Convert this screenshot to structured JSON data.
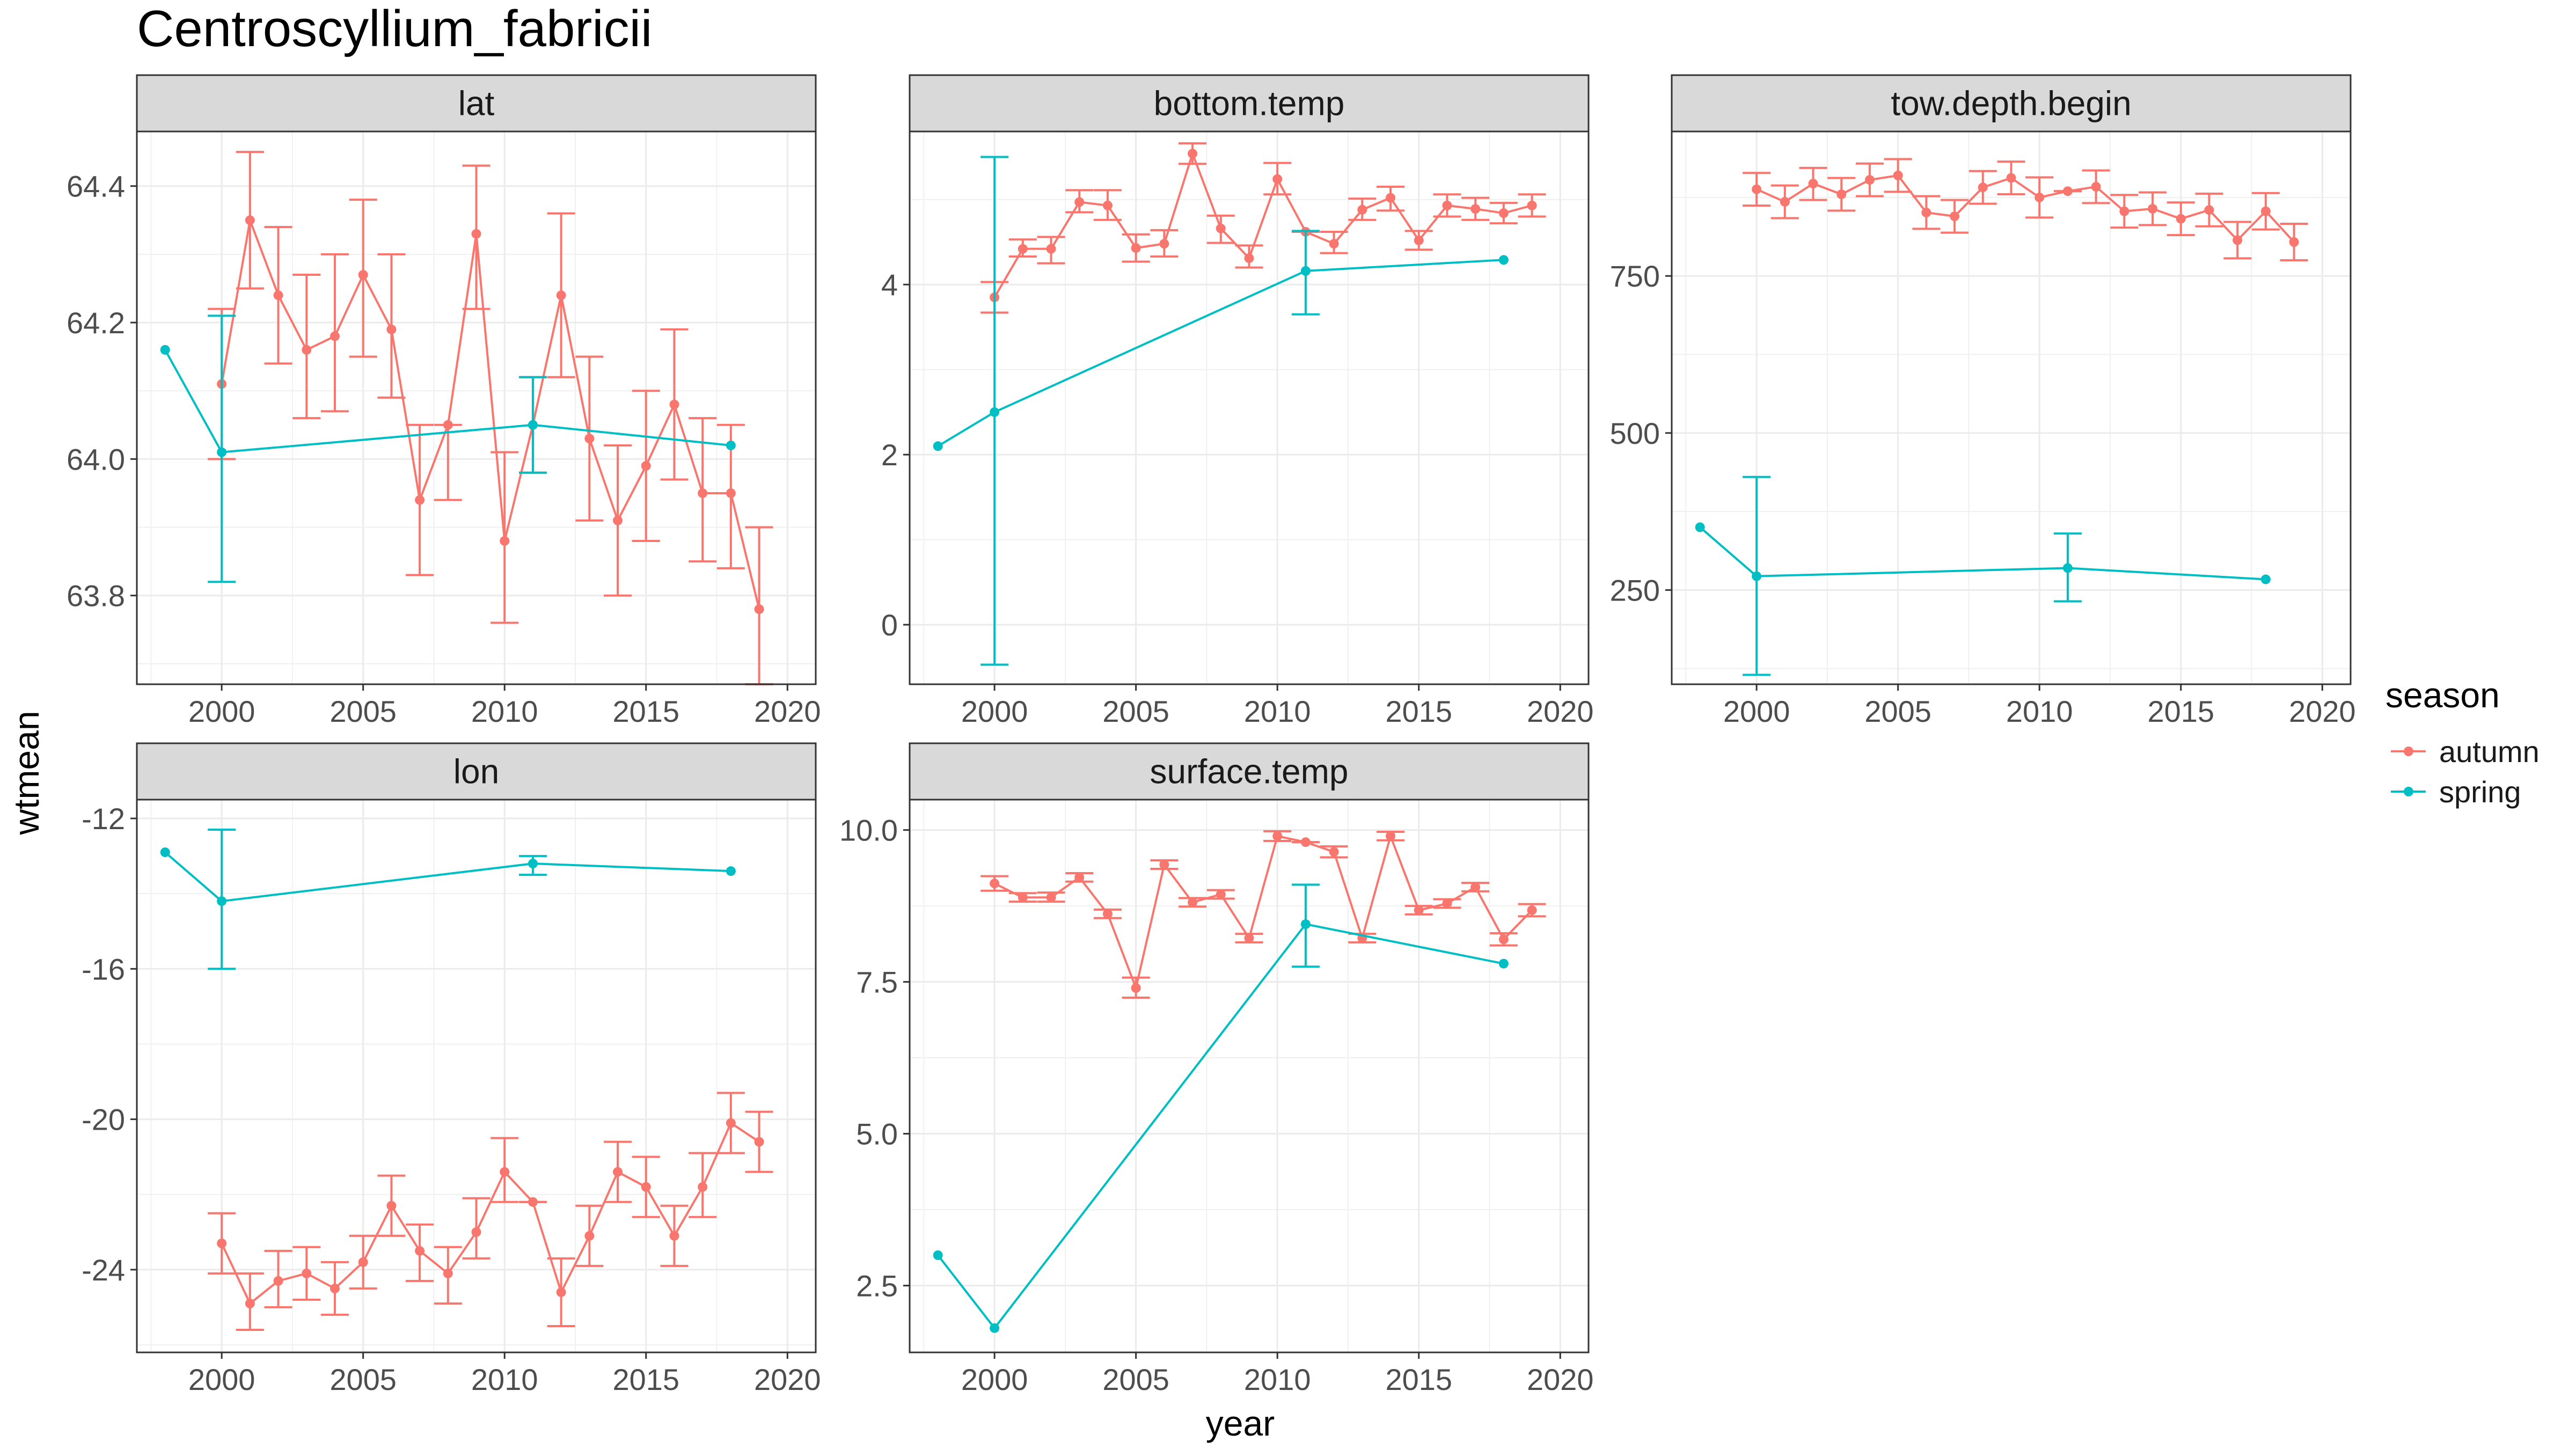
{
  "figure": {
    "title": "Centroscyllium_fabricii",
    "xlabel": "year",
    "ylabel": "wtmean"
  },
  "legend": {
    "title": "season",
    "items": [
      {
        "label": "autumn",
        "color": "#F8766D"
      },
      {
        "label": "spring",
        "color": "#00BFC4"
      }
    ]
  },
  "chart_data": [
    {
      "type": "line",
      "panel": "lat",
      "xlim": [
        1997,
        2021
      ],
      "ylim": [
        63.67,
        64.48
      ],
      "xticks": [
        2000,
        2005,
        2010,
        2015,
        2020
      ],
      "yticks": [
        63.8,
        64.0,
        64.2,
        64.4
      ],
      "ytick_labels": [
        "63.8",
        "64.0",
        "64.2",
        "64.4"
      ],
      "series": [
        {
          "name": "autumn",
          "color": "#F8766D",
          "points": [
            {
              "x": 2000,
              "y": 64.11,
              "lo": 64.0,
              "hi": 64.22
            },
            {
              "x": 2001,
              "y": 64.35,
              "lo": 64.25,
              "hi": 64.45
            },
            {
              "x": 2002,
              "y": 64.24,
              "lo": 64.14,
              "hi": 64.34
            },
            {
              "x": 2003,
              "y": 64.16,
              "lo": 64.06,
              "hi": 64.27
            },
            {
              "x": 2004,
              "y": 64.18,
              "lo": 64.07,
              "hi": 64.3
            },
            {
              "x": 2005,
              "y": 64.27,
              "lo": 64.15,
              "hi": 64.38
            },
            {
              "x": 2006,
              "y": 64.19,
              "lo": 64.09,
              "hi": 64.3
            },
            {
              "x": 2007,
              "y": 63.94,
              "lo": 63.83,
              "hi": 64.05
            },
            {
              "x": 2008,
              "y": 64.05,
              "lo": 63.94,
              "hi": 64.05
            },
            {
              "x": 2009,
              "y": 64.33,
              "lo": 64.22,
              "hi": 64.43
            },
            {
              "x": 2010,
              "y": 63.88,
              "lo": 63.76,
              "hi": 64.01
            },
            {
              "x": 2011,
              "y": 64.05,
              "lo": 63.98,
              "hi": 64.12
            },
            {
              "x": 2012,
              "y": 64.24,
              "lo": 64.12,
              "hi": 64.36
            },
            {
              "x": 2013,
              "y": 64.03,
              "lo": 63.91,
              "hi": 64.15
            },
            {
              "x": 2014,
              "y": 63.91,
              "lo": 63.8,
              "hi": 64.02
            },
            {
              "x": 2015,
              "y": 63.99,
              "lo": 63.88,
              "hi": 64.1
            },
            {
              "x": 2016,
              "y": 64.08,
              "lo": 63.97,
              "hi": 64.19
            },
            {
              "x": 2017,
              "y": 63.95,
              "lo": 63.85,
              "hi": 64.06
            },
            {
              "x": 2018,
              "y": 63.95,
              "lo": 63.84,
              "hi": 64.05
            },
            {
              "x": 2019,
              "y": 63.78,
              "lo": 63.67,
              "hi": 63.9
            }
          ]
        },
        {
          "name": "spring",
          "color": "#00BFC4",
          "points": [
            {
              "x": 1998,
              "y": 64.16
            },
            {
              "x": 2000,
              "y": 64.01,
              "lo": 63.82,
              "hi": 64.21
            },
            {
              "x": 2011,
              "y": 64.05,
              "lo": 63.98,
              "hi": 64.12
            },
            {
              "x": 2018,
              "y": 64.02
            }
          ]
        }
      ]
    },
    {
      "type": "line",
      "panel": "bottom.temp",
      "xlim": [
        1997,
        2021
      ],
      "ylim": [
        -0.7,
        5.8
      ],
      "xticks": [
        2000,
        2005,
        2010,
        2015,
        2020
      ],
      "yticks": [
        0,
        2,
        4
      ],
      "ytick_labels": [
        "0",
        "2",
        "4"
      ],
      "series": [
        {
          "name": "autumn",
          "color": "#F8766D",
          "points": [
            {
              "x": 2000,
              "y": 3.85,
              "lo": 3.67,
              "hi": 4.03
            },
            {
              "x": 2001,
              "y": 4.42,
              "lo": 4.33,
              "hi": 4.53
            },
            {
              "x": 2002,
              "y": 4.42,
              "lo": 4.25,
              "hi": 4.56
            },
            {
              "x": 2003,
              "y": 4.97,
              "lo": 4.85,
              "hi": 5.11
            },
            {
              "x": 2004,
              "y": 4.93,
              "lo": 4.76,
              "hi": 5.11
            },
            {
              "x": 2005,
              "y": 4.43,
              "lo": 4.27,
              "hi": 4.59
            },
            {
              "x": 2006,
              "y": 4.48,
              "lo": 4.33,
              "hi": 4.64
            },
            {
              "x": 2007,
              "y": 5.54,
              "lo": 5.42,
              "hi": 5.66
            },
            {
              "x": 2008,
              "y": 4.66,
              "lo": 4.49,
              "hi": 4.81
            },
            {
              "x": 2009,
              "y": 4.31,
              "lo": 4.2,
              "hi": 4.46
            },
            {
              "x": 2010,
              "y": 5.24,
              "lo": 5.06,
              "hi": 5.43
            },
            {
              "x": 2011,
              "y": 4.62,
              "lo": 4.62,
              "hi": 4.62
            },
            {
              "x": 2012,
              "y": 4.48,
              "lo": 4.37,
              "hi": 4.62
            },
            {
              "x": 2013,
              "y": 4.88,
              "lo": 4.76,
              "hi": 5.01
            },
            {
              "x": 2014,
              "y": 5.02,
              "lo": 4.87,
              "hi": 5.15
            },
            {
              "x": 2015,
              "y": 4.52,
              "lo": 4.41,
              "hi": 4.63
            },
            {
              "x": 2016,
              "y": 4.93,
              "lo": 4.8,
              "hi": 5.06
            },
            {
              "x": 2017,
              "y": 4.89,
              "lo": 4.76,
              "hi": 5.02
            },
            {
              "x": 2018,
              "y": 4.84,
              "lo": 4.72,
              "hi": 4.96
            },
            {
              "x": 2019,
              "y": 4.93,
              "lo": 4.8,
              "hi": 5.06
            }
          ]
        },
        {
          "name": "spring",
          "color": "#00BFC4",
          "points": [
            {
              "x": 1998,
              "y": 2.1
            },
            {
              "x": 2000,
              "y": 2.5,
              "lo": -0.47,
              "hi": 5.5
            },
            {
              "x": 2011,
              "y": 4.16,
              "lo": 3.65,
              "hi": 4.63
            },
            {
              "x": 2018,
              "y": 4.29
            }
          ]
        }
      ]
    },
    {
      "type": "line",
      "panel": "tow.depth.begin",
      "xlim": [
        1997,
        2021
      ],
      "ylim": [
        100,
        980
      ],
      "xticks": [
        2000,
        2005,
        2010,
        2015,
        2020
      ],
      "yticks": [
        250,
        500,
        750
      ],
      "ytick_labels": [
        "250",
        "500",
        "750"
      ],
      "series": [
        {
          "name": "autumn",
          "color": "#F8766D",
          "points": [
            {
              "x": 2000,
              "y": 888,
              "lo": 862,
              "hi": 914
            },
            {
              "x": 2001,
              "y": 868,
              "lo": 842,
              "hi": 894
            },
            {
              "x": 2002,
              "y": 897,
              "lo": 871,
              "hi": 922
            },
            {
              "x": 2003,
              "y": 880,
              "lo": 854,
              "hi": 906
            },
            {
              "x": 2004,
              "y": 903,
              "lo": 877,
              "hi": 929
            },
            {
              "x": 2005,
              "y": 910,
              "lo": 884,
              "hi": 936
            },
            {
              "x": 2006,
              "y": 851,
              "lo": 825,
              "hi": 877
            },
            {
              "x": 2007,
              "y": 845,
              "lo": 819,
              "hi": 871
            },
            {
              "x": 2008,
              "y": 891,
              "lo": 865,
              "hi": 917
            },
            {
              "x": 2009,
              "y": 906,
              "lo": 880,
              "hi": 932
            },
            {
              "x": 2010,
              "y": 875,
              "lo": 843,
              "hi": 907
            },
            {
              "x": 2011,
              "y": 885,
              "lo": 885,
              "hi": 885
            },
            {
              "x": 2012,
              "y": 892,
              "lo": 866,
              "hi": 918
            },
            {
              "x": 2013,
              "y": 853,
              "lo": 827,
              "hi": 879
            },
            {
              "x": 2014,
              "y": 857,
              "lo": 831,
              "hi": 883
            },
            {
              "x": 2015,
              "y": 841,
              "lo": 815,
              "hi": 867
            },
            {
              "x": 2016,
              "y": 855,
              "lo": 829,
              "hi": 881
            },
            {
              "x": 2017,
              "y": 807,
              "lo": 778,
              "hi": 836
            },
            {
              "x": 2018,
              "y": 853,
              "lo": 824,
              "hi": 882
            },
            {
              "x": 2019,
              "y": 804,
              "lo": 775,
              "hi": 833
            }
          ]
        },
        {
          "name": "spring",
          "color": "#00BFC4",
          "points": [
            {
              "x": 1998,
              "y": 350
            },
            {
              "x": 2000,
              "y": 272,
              "lo": 115,
              "hi": 430
            },
            {
              "x": 2011,
              "y": 285,
              "lo": 232,
              "hi": 340
            },
            {
              "x": 2018,
              "y": 267
            }
          ]
        }
      ]
    },
    {
      "type": "line",
      "panel": "lon",
      "xlim": [
        1997,
        2021
      ],
      "ylim": [
        -26.2,
        -11.5
      ],
      "xticks": [
        2000,
        2005,
        2010,
        2015,
        2020
      ],
      "yticks": [
        -24,
        -20,
        -16,
        -12
      ],
      "ytick_labels": [
        "-24",
        "-20",
        "-16",
        "-12"
      ],
      "series": [
        {
          "name": "autumn",
          "color": "#F8766D",
          "points": [
            {
              "x": 2000,
              "y": -23.3,
              "lo": -24.1,
              "hi": -22.5
            },
            {
              "x": 2001,
              "y": -24.9,
              "lo": -25.6,
              "hi": -24.1
            },
            {
              "x": 2002,
              "y": -24.3,
              "lo": -25.0,
              "hi": -23.5
            },
            {
              "x": 2003,
              "y": -24.1,
              "lo": -24.8,
              "hi": -23.4
            },
            {
              "x": 2004,
              "y": -24.5,
              "lo": -25.2,
              "hi": -23.8
            },
            {
              "x": 2005,
              "y": -23.8,
              "lo": -24.5,
              "hi": -23.1
            },
            {
              "x": 2006,
              "y": -22.3,
              "lo": -23.1,
              "hi": -21.5
            },
            {
              "x": 2007,
              "y": -23.5,
              "lo": -24.3,
              "hi": -22.8
            },
            {
              "x": 2008,
              "y": -24.1,
              "lo": -24.9,
              "hi": -23.4
            },
            {
              "x": 2009,
              "y": -23.0,
              "lo": -23.7,
              "hi": -22.1
            },
            {
              "x": 2010,
              "y": -21.4,
              "lo": -22.2,
              "hi": -20.5
            },
            {
              "x": 2011,
              "y": -22.2,
              "lo": -22.2,
              "hi": -22.2
            },
            {
              "x": 2012,
              "y": -24.6,
              "lo": -25.5,
              "hi": -23.7
            },
            {
              "x": 2013,
              "y": -23.1,
              "lo": -23.9,
              "hi": -22.3
            },
            {
              "x": 2014,
              "y": -21.4,
              "lo": -22.2,
              "hi": -20.6
            },
            {
              "x": 2015,
              "y": -21.8,
              "lo": -22.6,
              "hi": -21.0
            },
            {
              "x": 2016,
              "y": -23.1,
              "lo": -23.9,
              "hi": -22.3
            },
            {
              "x": 2017,
              "y": -21.8,
              "lo": -22.6,
              "hi": -20.9
            },
            {
              "x": 2018,
              "y": -20.1,
              "lo": -20.9,
              "hi": -19.3
            },
            {
              "x": 2019,
              "y": -20.6,
              "lo": -21.4,
              "hi": -19.8
            }
          ]
        },
        {
          "name": "spring",
          "color": "#00BFC4",
          "points": [
            {
              "x": 1998,
              "y": -12.9
            },
            {
              "x": 2000,
              "y": -14.2,
              "lo": -16.0,
              "hi": -12.3
            },
            {
              "x": 2011,
              "y": -13.2,
              "lo": -13.5,
              "hi": -13.0
            },
            {
              "x": 2018,
              "y": -13.4
            }
          ]
        }
      ]
    },
    {
      "type": "line",
      "panel": "surface.temp",
      "xlim": [
        1997,
        2021
      ],
      "ylim": [
        1.4,
        10.5
      ],
      "xticks": [
        2000,
        2005,
        2010,
        2015,
        2020
      ],
      "yticks": [
        2.5,
        5.0,
        7.5,
        10.0
      ],
      "ytick_labels": [
        "2.5",
        "5.0",
        "7.5",
        "10.0"
      ],
      "series": [
        {
          "name": "autumn",
          "color": "#F8766D",
          "points": [
            {
              "x": 2000,
              "y": 9.12,
              "lo": 9.0,
              "hi": 9.24
            },
            {
              "x": 2001,
              "y": 8.89,
              "lo": 8.82,
              "hi": 8.96
            },
            {
              "x": 2002,
              "y": 8.89,
              "lo": 8.82,
              "hi": 8.97
            },
            {
              "x": 2003,
              "y": 9.22,
              "lo": 9.15,
              "hi": 9.29
            },
            {
              "x": 2004,
              "y": 8.62,
              "lo": 8.55,
              "hi": 8.69
            },
            {
              "x": 2005,
              "y": 7.4,
              "lo": 7.24,
              "hi": 7.57
            },
            {
              "x": 2006,
              "y": 9.43,
              "lo": 9.36,
              "hi": 9.5
            },
            {
              "x": 2007,
              "y": 8.81,
              "lo": 8.74,
              "hi": 8.88
            },
            {
              "x": 2008,
              "y": 8.94,
              "lo": 8.87,
              "hi": 9.01
            },
            {
              "x": 2009,
              "y": 8.22,
              "lo": 8.15,
              "hi": 8.29
            },
            {
              "x": 2010,
              "y": 9.9,
              "lo": 9.82,
              "hi": 9.98
            },
            {
              "x": 2011,
              "y": 9.8,
              "lo": 9.8,
              "hi": 9.8
            },
            {
              "x": 2012,
              "y": 9.64,
              "lo": 9.55,
              "hi": 9.73
            },
            {
              "x": 2013,
              "y": 8.22,
              "lo": 8.15,
              "hi": 8.29
            },
            {
              "x": 2014,
              "y": 9.9,
              "lo": 9.83,
              "hi": 9.97
            },
            {
              "x": 2015,
              "y": 8.68,
              "lo": 8.61,
              "hi": 8.75
            },
            {
              "x": 2016,
              "y": 8.79,
              "lo": 8.72,
              "hi": 8.86
            },
            {
              "x": 2017,
              "y": 9.06,
              "lo": 8.99,
              "hi": 9.13
            },
            {
              "x": 2018,
              "y": 8.2,
              "lo": 8.1,
              "hi": 8.3
            },
            {
              "x": 2019,
              "y": 8.68,
              "lo": 8.58,
              "hi": 8.78
            }
          ]
        },
        {
          "name": "spring",
          "color": "#00BFC4",
          "points": [
            {
              "x": 1998,
              "y": 3.0
            },
            {
              "x": 2000,
              "y": 1.8
            },
            {
              "x": 2011,
              "y": 8.45,
              "lo": 7.75,
              "hi": 9.1
            },
            {
              "x": 2018,
              "y": 7.8
            }
          ]
        }
      ]
    }
  ]
}
